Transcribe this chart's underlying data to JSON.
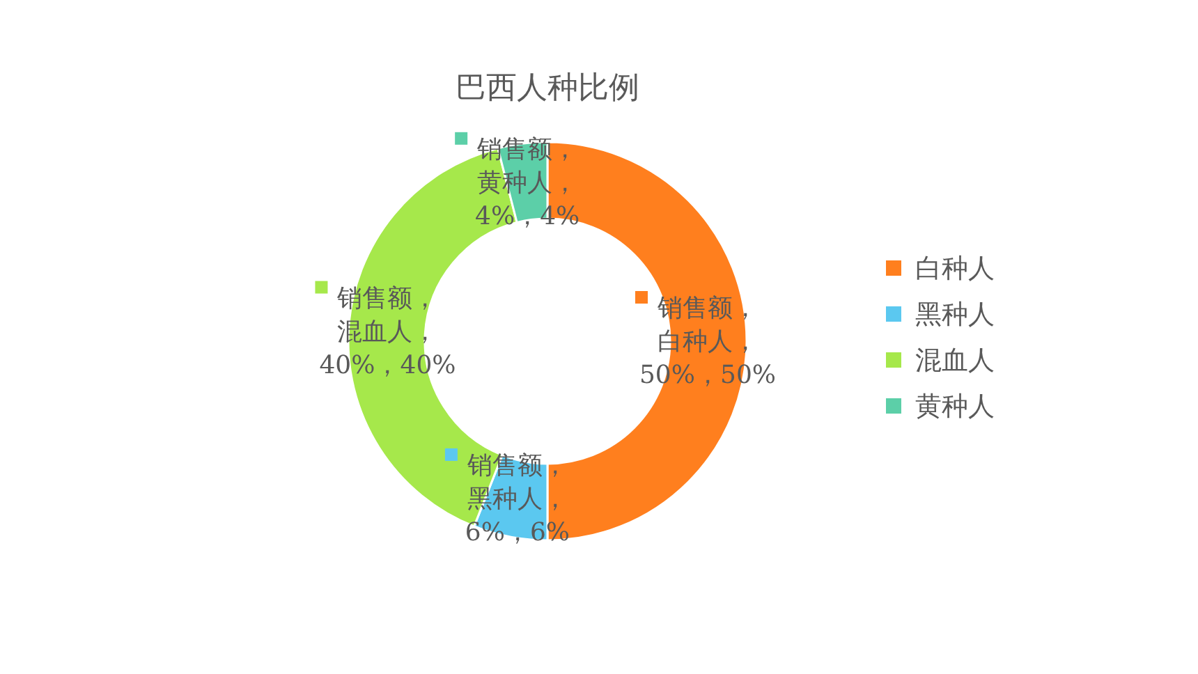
{
  "chart_data": {
    "type": "donut",
    "title": "巴西人种比例",
    "categories": [
      "白种人",
      "黑种人",
      "混血人",
      "黄种人"
    ],
    "values": [
      50,
      6,
      40,
      4
    ],
    "colors": [
      "#ff7f1e",
      "#5bc8f0",
      "#a6e84b",
      "#5ccfa8"
    ],
    "value_labels": [
      "销售额，白种人，50%，50%",
      "销售额，黑种人，6%，6%",
      "销售额，混血人，40%，40%",
      "销售额，黄种人，4%，4%"
    ],
    "legend": "right"
  }
}
